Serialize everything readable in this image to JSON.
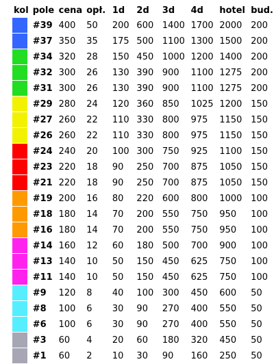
{
  "headers": {
    "kol": "kol",
    "pole": "pole",
    "cena": "cena",
    "opl": "opł.",
    "d1": "1d",
    "d2": "2d",
    "d3": "3d",
    "d4": "4d",
    "hotel": "hotel",
    "bud": "bud."
  },
  "rows": [
    {
      "color": "#3366ff",
      "pole": "#39",
      "cena": "400",
      "opl": "50",
      "d1": "200",
      "d2": "600",
      "d3": "1400",
      "d4": "1700",
      "hotel": "2000",
      "bud": "200"
    },
    {
      "color": "#3366ff",
      "pole": "#37",
      "cena": "350",
      "opl": "35",
      "d1": "175",
      "d2": "500",
      "d3": "1100",
      "d4": "1300",
      "hotel": "1500",
      "bud": "200"
    },
    {
      "color": "#22dd22",
      "pole": "#34",
      "cena": "320",
      "opl": "28",
      "d1": "150",
      "d2": "450",
      "d3": "1000",
      "d4": "1200",
      "hotel": "1400",
      "bud": "200"
    },
    {
      "color": "#22dd22",
      "pole": "#32",
      "cena": "300",
      "opl": "26",
      "d1": "130",
      "d2": "390",
      "d3": "900",
      "d4": "1100",
      "hotel": "1275",
      "bud": "200"
    },
    {
      "color": "#22dd22",
      "pole": "#31",
      "cena": "300",
      "opl": "26",
      "d1": "130",
      "d2": "390",
      "d3": "900",
      "d4": "1100",
      "hotel": "1275",
      "bud": "200"
    },
    {
      "color": "#f2f200",
      "pole": "#29",
      "cena": "280",
      "opl": "24",
      "d1": "120",
      "d2": "360",
      "d3": "850",
      "d4": "1025",
      "hotel": "1200",
      "bud": "150"
    },
    {
      "color": "#f2f200",
      "pole": "#27",
      "cena": "260",
      "opl": "22",
      "d1": "110",
      "d2": "330",
      "d3": "800",
      "d4": "975",
      "hotel": "1150",
      "bud": "150"
    },
    {
      "color": "#f2f200",
      "pole": "#26",
      "cena": "260",
      "opl": "22",
      "d1": "110",
      "d2": "330",
      "d3": "800",
      "d4": "975",
      "hotel": "1150",
      "bud": "150"
    },
    {
      "color": "#ff0000",
      "pole": "#24",
      "cena": "240",
      "opl": "20",
      "d1": "100",
      "d2": "300",
      "d3": "750",
      "d4": "925",
      "hotel": "1100",
      "bud": "150"
    },
    {
      "color": "#ff0000",
      "pole": "#23",
      "cena": "220",
      "opl": "18",
      "d1": "90",
      "d2": "250",
      "d3": "700",
      "d4": "875",
      "hotel": "1050",
      "bud": "150"
    },
    {
      "color": "#ff0000",
      "pole": "#21",
      "cena": "220",
      "opl": "18",
      "d1": "90",
      "d2": "250",
      "d3": "700",
      "d4": "875",
      "hotel": "1050",
      "bud": "150"
    },
    {
      "color": "#ff9900",
      "pole": "#19",
      "cena": "200",
      "opl": "16",
      "d1": "80",
      "d2": "220",
      "d3": "600",
      "d4": "800",
      "hotel": "1000",
      "bud": "100"
    },
    {
      "color": "#ff9900",
      "pole": "#18",
      "cena": "180",
      "opl": "14",
      "d1": "70",
      "d2": "200",
      "d3": "550",
      "d4": "750",
      "hotel": "950",
      "bud": "100"
    },
    {
      "color": "#ff9900",
      "pole": "#16",
      "cena": "180",
      "opl": "14",
      "d1": "70",
      "d2": "200",
      "d3": "550",
      "d4": "750",
      "hotel": "950",
      "bud": "100"
    },
    {
      "color": "#ff22ee",
      "pole": "#14",
      "cena": "160",
      "opl": "12",
      "d1": "60",
      "d2": "180",
      "d3": "500",
      "d4": "700",
      "hotel": "900",
      "bud": "100"
    },
    {
      "color": "#ff22ee",
      "pole": "#13",
      "cena": "140",
      "opl": "10",
      "d1": "50",
      "d2": "150",
      "d3": "450",
      "d4": "625",
      "hotel": "750",
      "bud": "100"
    },
    {
      "color": "#ff22ee",
      "pole": "#11",
      "cena": "140",
      "opl": "10",
      "d1": "50",
      "d2": "150",
      "d3": "450",
      "d4": "625",
      "hotel": "750",
      "bud": "100"
    },
    {
      "color": "#55eeff",
      "pole": "#9",
      "cena": "120",
      "opl": "8",
      "d1": "40",
      "d2": "100",
      "d3": "300",
      "d4": "450",
      "hotel": "600",
      "bud": "50"
    },
    {
      "color": "#55eeff",
      "pole": "#8",
      "cena": "100",
      "opl": "6",
      "d1": "30",
      "d2": "90",
      "d3": "270",
      "d4": "400",
      "hotel": "550",
      "bud": "50"
    },
    {
      "color": "#55eeff",
      "pole": "#6",
      "cena": "100",
      "opl": "6",
      "d1": "30",
      "d2": "90",
      "d3": "270",
      "d4": "400",
      "hotel": "550",
      "bud": "50"
    },
    {
      "color": "#a6a6b4",
      "pole": "#3",
      "cena": "60",
      "opl": "4",
      "d1": "20",
      "d2": "60",
      "d3": "180",
      "d4": "320",
      "hotel": "450",
      "bud": "50"
    },
    {
      "color": "#a6a6b4",
      "pole": "#1",
      "cena": "60",
      "opl": "2",
      "d1": "10",
      "d2": "30",
      "d3": "90",
      "d4": "160",
      "hotel": "250",
      "bud": "50"
    }
  ]
}
